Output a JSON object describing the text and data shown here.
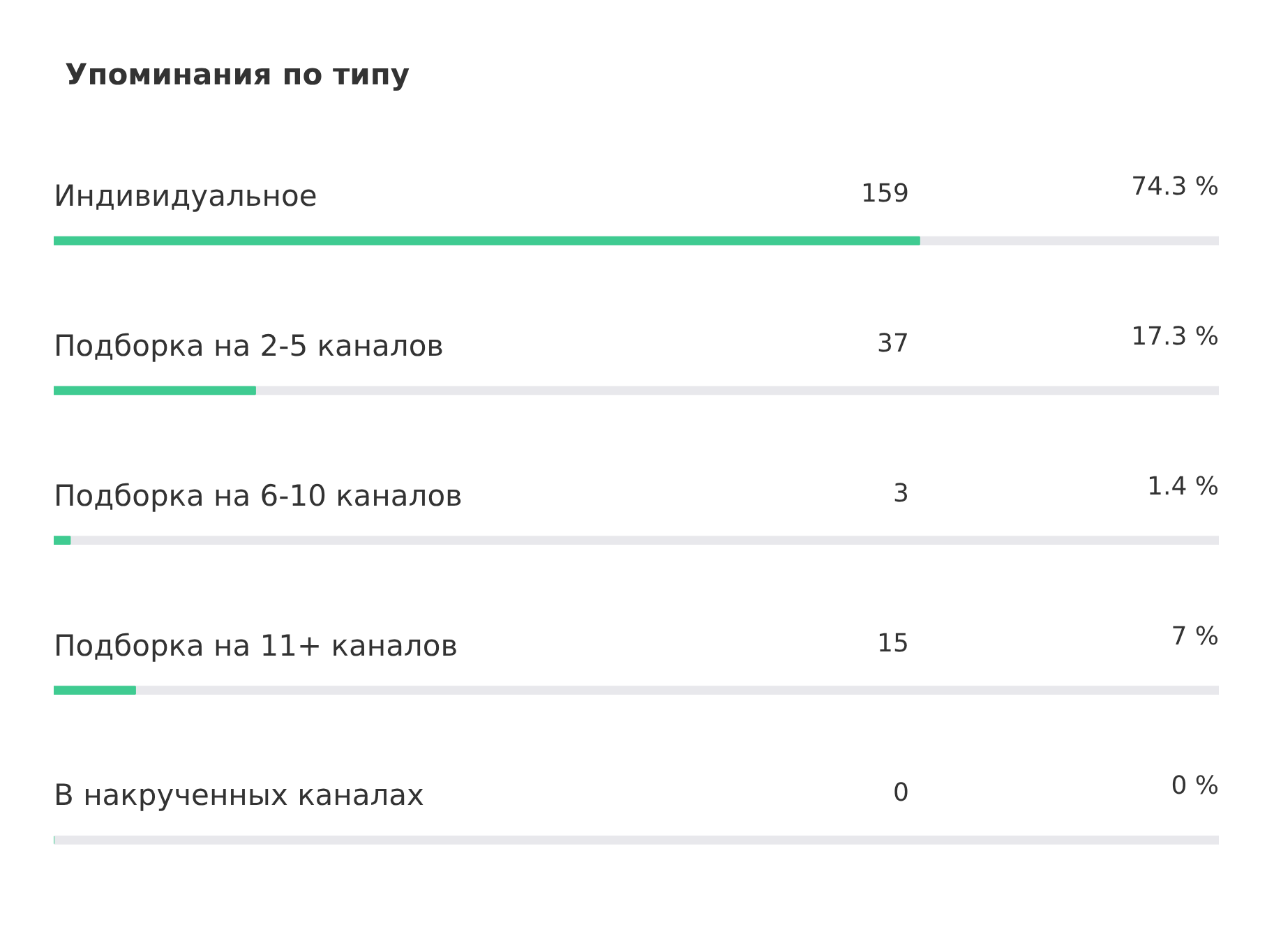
{
  "chart_data": {
    "type": "bar",
    "orientation": "horizontal",
    "title": "Упоминания по типу",
    "categories": [
      "Индивидуальное",
      "Подборка на 2-5 каналов",
      "Подборка на 6-10 каналов",
      "Подборка на 11+ каналов",
      "В накрученных каналах"
    ],
    "values": [
      74.3,
      17.3,
      1.4,
      7,
      0
    ],
    "value_labels": [
      "74.3 %",
      "17.3 %",
      "1.4 %",
      "7 %",
      "0 %"
    ],
    "color": "#3fcb91",
    "xlim": [
      0,
      100
    ],
    "tick_labels": false,
    "grid": false,
    "annotations": [
      "159",
      "37",
      "3",
      "15",
      "0"
    ]
  }
}
